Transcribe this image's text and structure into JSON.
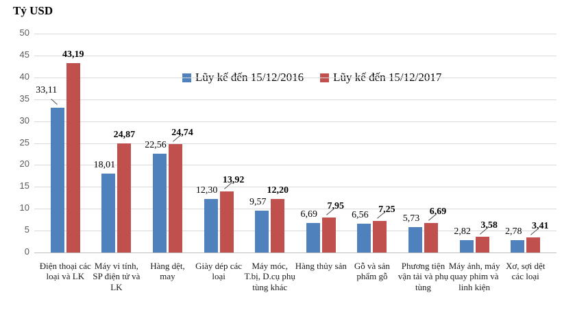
{
  "chart_data": {
    "type": "bar",
    "title": "Tỷ USD",
    "categories": [
      "Điện thoại các loại và LK",
      "Máy vi tính, SP điện tử và LK",
      "Hàng dệt, may",
      "Giày dép các loại",
      "Máy móc, T.bị, D.cụ phụ tùng khác",
      "Hàng thủy sản",
      "Gỗ và sản phẩm gỗ",
      "Phương tiện vận tải và phụ tùng",
      "Máy ảnh, máy quay phim và linh kiện",
      "Xơ, sợi dệt các loại"
    ],
    "series": [
      {
        "name": "Lũy kế đến 15/12/2016",
        "color": "#4F81BD",
        "values": [
          33.11,
          18.01,
          22.56,
          12.3,
          9.57,
          6.69,
          6.56,
          5.73,
          2.82,
          2.78
        ],
        "value_labels": [
          "33,11",
          "18,01",
          "22,56",
          "12,30",
          "9,57",
          "6,69",
          "6,56",
          "5,73",
          "2,82",
          "2,78"
        ]
      },
      {
        "name": "Lũy kế đến 15/12/2017",
        "color": "#C0504D",
        "values": [
          43.19,
          24.87,
          24.74,
          13.92,
          12.2,
          7.95,
          7.25,
          6.69,
          3.58,
          3.41
        ],
        "value_labels": [
          "43,19",
          "24,87",
          "24,74",
          "13,92",
          "12,20",
          "7,95",
          "7,25",
          "6,69",
          "3,58",
          "3,41"
        ]
      }
    ],
    "xlabel": "",
    "ylabel": "Tỷ USD",
    "ylim": [
      0,
      50
    ],
    "yticks": [
      0,
      5,
      10,
      15,
      20,
      25,
      30,
      35,
      40,
      45,
      50
    ],
    "grid": true,
    "legend_position": "top-center-inside",
    "annotations": {
      "callout_indices_2016": [
        0
      ],
      "callout_indices_2017": [
        2,
        3,
        5,
        6,
        7,
        8,
        9
      ]
    },
    "colors": {
      "grid": "#D9D9D9",
      "axis": "#BFBFBF",
      "tick_text": "#595959",
      "label_text": "#000000"
    }
  }
}
